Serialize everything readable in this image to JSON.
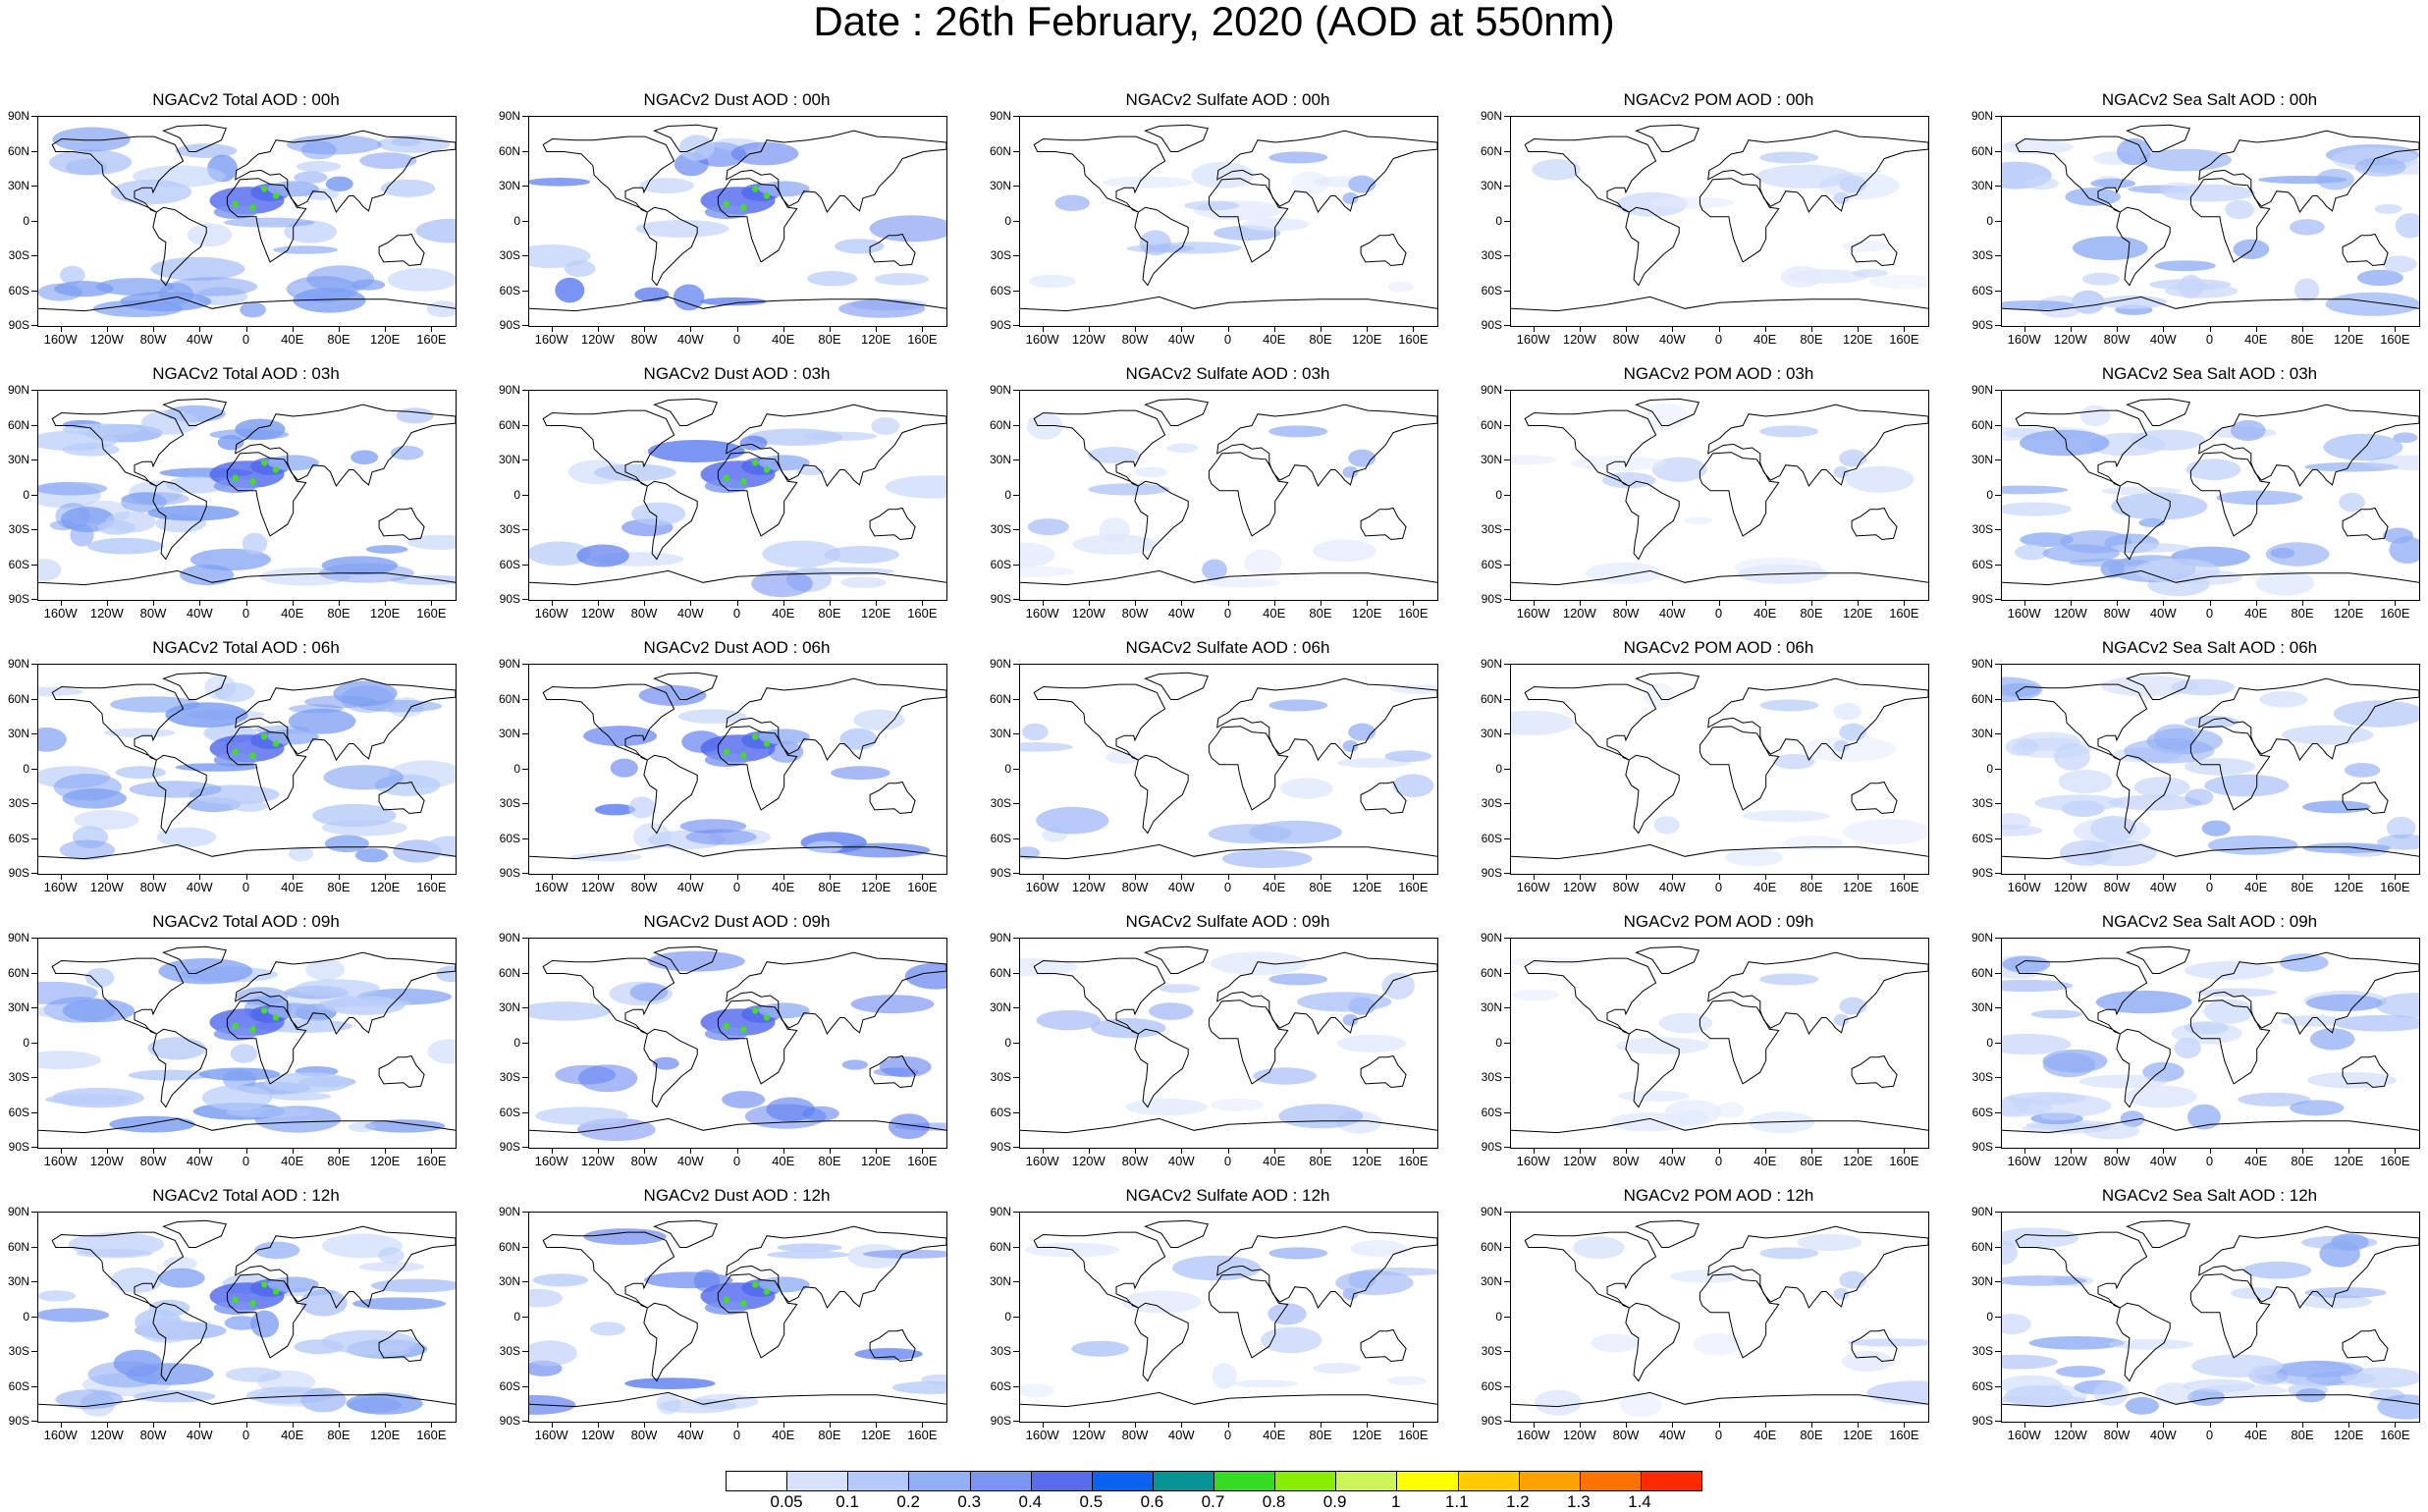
{
  "title": "Date : 26th February, 2020 (AOD at 550nm)",
  "lat_labels": [
    "90N",
    "60N",
    "30N",
    "0",
    "30S",
    "60S",
    "90S"
  ],
  "lon_labels": [
    "160W",
    "120W",
    "80W",
    "40W",
    "0",
    "40E",
    "80E",
    "120E",
    "160E"
  ],
  "species": [
    {
      "key": "total",
      "primary": "#7a9cf2",
      "secondary": "#b9cdf9",
      "hotspot": "#44dd22",
      "coverage": 0.85
    },
    {
      "key": "dust",
      "primary": "#5f7ff0",
      "secondary": "#b9cdf9",
      "hotspot": "#44dd22",
      "coverage": 0.35
    },
    {
      "key": "sulfate",
      "primary": "#a6bdf7",
      "secondary": "#dde7fd",
      "hotspot": "",
      "coverage": 0.2
    },
    {
      "key": "pom",
      "primary": "#c7d6fa",
      "secondary": "#e3ebfd",
      "hotspot": "",
      "coverage": 0.1
    },
    {
      "key": "seasalt",
      "primary": "#8eacf4",
      "secondary": "#c7d6fa",
      "hotspot": "",
      "coverage": 0.8
    }
  ],
  "panels": [
    [
      "NGACv2 Total AOD : 00h",
      "NGACv2 Dust AOD : 00h",
      "NGACv2 Sulfate AOD : 00h",
      "NGACv2 POM AOD : 00h",
      "NGACv2 Sea Salt AOD : 00h"
    ],
    [
      "NGACv2 Total AOD : 03h",
      "NGACv2 Dust AOD : 03h",
      "NGACv2 Sulfate AOD : 03h",
      "NGACv2 POM AOD : 03h",
      "NGACv2 Sea Salt AOD : 03h"
    ],
    [
      "NGACv2 Total AOD : 06h",
      "NGACv2 Dust AOD : 06h",
      "NGACv2 Sulfate AOD : 06h",
      "NGACv2 POM AOD : 06h",
      "NGACv2 Sea Salt AOD : 06h"
    ],
    [
      "NGACv2 Total AOD : 09h",
      "NGACv2 Dust AOD : 09h",
      "NGACv2 Sulfate AOD : 09h",
      "NGACv2 POM AOD : 09h",
      "NGACv2 Sea Salt  AOD : 09h"
    ],
    [
      "NGACv2 Total AOD :  12h",
      "NGACv2 Dust AOD : 12h",
      "NGACv2 Sulfate AOD : 12h",
      "NGACv2 POM  AOD : 12h",
      "NGACv2 Sea Salt AOD : 12h"
    ]
  ],
  "colorbar": {
    "colors": [
      "#ffffff",
      "#d6e2fc",
      "#b4c9f9",
      "#94b0f5",
      "#7b95f2",
      "#5a6cee",
      "#0a62ef",
      "#069494",
      "#33dd22",
      "#88ee00",
      "#ccf55a",
      "#ffff00",
      "#ffcc00",
      "#ffa200",
      "#ff7200",
      "#ff2a00"
    ],
    "labels": [
      "0.05",
      "0.1",
      "0.2",
      "0.3",
      "0.4",
      "0.5",
      "0.6",
      "0.7",
      "0.8",
      "0.9",
      "1",
      "1.1",
      "1.2",
      "1.3",
      "1.4"
    ]
  }
}
